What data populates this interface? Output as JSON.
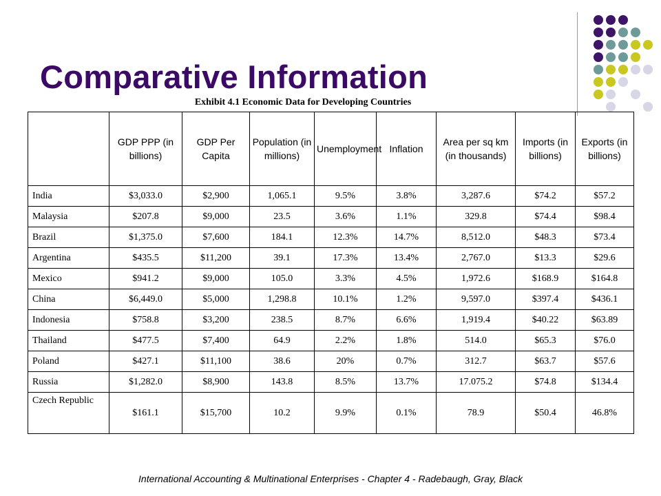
{
  "slide": {
    "title": "Comparative Information",
    "caption": "Exhibit 4.1  Economic Data for Developing Countries",
    "footer": "International Accounting & Multinational Enterprises - Chapter 4 - Radebaugh, Gray, Black"
  },
  "decoration": {
    "colors": {
      "purple": "#3d1466",
      "teal": "#6f9a9a",
      "olive": "#c8c820",
      "lavender": "#d6d6e6"
    }
  },
  "table": {
    "headers": [
      "",
      "GDP PPP (in billions)",
      "GDP Per Capita",
      "Population (in millions)",
      "Unemployment",
      "Inflation",
      "Area per sq km (in thousands)",
      "Imports (in billions)",
      "Exports (in billions)"
    ],
    "rows": [
      [
        "India",
        "$3,033.0",
        "$2,900",
        "1,065.1",
        "9.5%",
        "3.8%",
        "3,287.6",
        "$74.2",
        "$57.2"
      ],
      [
        "Malaysia",
        "$207.8",
        "$9,000",
        "23.5",
        "3.6%",
        "1.1%",
        "329.8",
        "$74.4",
        "$98.4"
      ],
      [
        "Brazil",
        "$1,375.0",
        "$7,600",
        "184.1",
        "12.3%",
        "14.7%",
        "8,512.0",
        "$48.3",
        "$73.4"
      ],
      [
        "Argentina",
        "$435.5",
        "$11,200",
        "39.1",
        "17.3%",
        "13.4%",
        "2,767.0",
        "$13.3",
        "$29.6"
      ],
      [
        "Mexico",
        "$941.2",
        "$9,000",
        "105.0",
        "3.3%",
        "4.5%",
        "1,972.6",
        "$168.9",
        "$164.8"
      ],
      [
        "China",
        "$6,449.0",
        "$5,000",
        "1,298.8",
        "10.1%",
        "1.2%",
        "9,597.0",
        "$397.4",
        "$436.1"
      ],
      [
        "Indonesia",
        "$758.8",
        "$3,200",
        "238.5",
        "8.7%",
        "6.6%",
        "1,919.4",
        "$40.22",
        "$63.89"
      ],
      [
        "Thailand",
        "$477.5",
        "$7,400",
        "64.9",
        "2.2%",
        "1.8%",
        "514.0",
        "$65.3",
        "$76.0"
      ],
      [
        "Poland",
        "$427.1",
        "$11,100",
        "38.6",
        "20%",
        "0.7%",
        "312.7",
        "$63.7",
        "$57.6"
      ],
      [
        "Russia",
        "$1,282.0",
        "$8,900",
        "143.8",
        "8.5%",
        "13.7%",
        "17.075.2",
        "$74.8",
        "$134.4"
      ],
      [
        "Czech Republic",
        "$161.1",
        "$15,700",
        "10.2",
        "9.9%",
        "0.1%",
        "78.9",
        "$50.4",
        "46.8%"
      ]
    ]
  }
}
